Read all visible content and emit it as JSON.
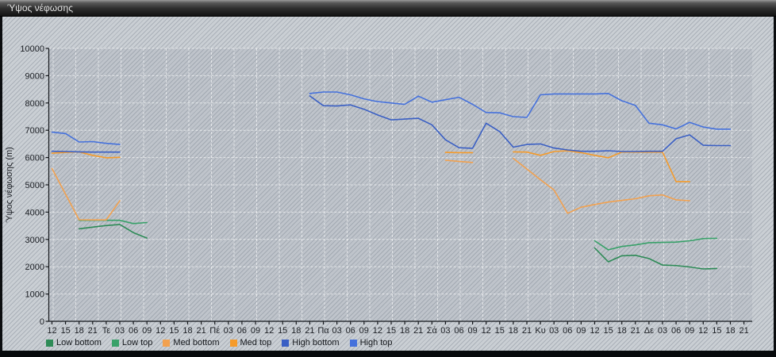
{
  "window": {
    "title": "Ύψος νέφωσης"
  },
  "colors": {
    "titlebar_text": "#e4e4e4",
    "background": "#cacfd4",
    "grid": "#ffffff",
    "axis": "#15181c",
    "low_bottom": "#2E8B57",
    "low_top": "#38A169",
    "med_bottom": "#F2A14F",
    "med_top": "#F59B2B",
    "high_bottom": "#3A5FC4",
    "high_top": "#4571DC"
  },
  "chart_data": {
    "type": "line",
    "title": "Ύψος νέφωσης",
    "xlabel": "",
    "ylabel": "Ύψος νέφωσης (m)",
    "ylim": [
      0,
      10000
    ],
    "ytick_step": 1000,
    "grid": {
      "horizontal": "white dashed every 1000 m",
      "vertical": "white dashed"
    },
    "legend_position": "bottom-left",
    "x_tick_labels": [
      "12",
      "15",
      "18",
      "21",
      "Τε",
      "03",
      "06",
      "09",
      "12",
      "15",
      "18",
      "21",
      "Πέ",
      "03",
      "06",
      "09",
      "12",
      "15",
      "18",
      "21",
      "Πα",
      "03",
      "06",
      "09",
      "12",
      "15",
      "18",
      "21",
      "Σά",
      "03",
      "06",
      "09",
      "12",
      "15",
      "18",
      "21",
      "Κυ",
      "03",
      "06",
      "09",
      "12",
      "15",
      "18",
      "21",
      "Δε",
      "03",
      "06",
      "09",
      "12",
      "15",
      "18",
      "21"
    ],
    "day_label_indices": [
      4,
      12,
      20,
      28,
      36,
      44
    ],
    "units": "m",
    "series": [
      {
        "name": "Low bottom",
        "color": "#2E8B57",
        "segments": [
          [
            [
              2,
              3390
            ],
            [
              3,
              3450
            ],
            [
              4,
              3510
            ],
            [
              5,
              3550
            ],
            [
              6,
              3250
            ],
            [
              7,
              3050
            ]
          ],
          [
            [
              40,
              2690
            ],
            [
              41,
              2180
            ],
            [
              42,
              2400
            ],
            [
              43,
              2420
            ],
            [
              44,
              2300
            ],
            [
              45,
              2060
            ],
            [
              46,
              2040
            ],
            [
              47,
              1990
            ],
            [
              48,
              1920
            ],
            [
              49,
              1935
            ]
          ]
        ]
      },
      {
        "name": "Low top",
        "color": "#38A169",
        "segments": [
          [
            [
              2,
              3700
            ],
            [
              3,
              3700
            ],
            [
              4,
              3700
            ],
            [
              5,
              3700
            ],
            [
              6,
              3580
            ],
            [
              7,
              3620
            ]
          ],
          [
            [
              40,
              2950
            ],
            [
              41,
              2620
            ],
            [
              42,
              2740
            ],
            [
              43,
              2800
            ],
            [
              44,
              2880
            ],
            [
              45,
              2890
            ],
            [
              46,
              2900
            ],
            [
              47,
              2950
            ],
            [
              48,
              3030
            ],
            [
              49,
              3040
            ]
          ]
        ]
      },
      {
        "name": "Med bottom",
        "color": "#F2A14F",
        "segments": [
          [
            [
              0,
              5600
            ],
            [
              1,
              4660
            ],
            [
              2,
              3720
            ],
            [
              3,
              3715
            ],
            [
              4,
              3715
            ],
            [
              5,
              4420
            ]
          ],
          [
            [
              29,
              5900
            ],
            [
              30,
              5860
            ],
            [
              31,
              5820
            ]
          ],
          [
            [
              34,
              5970
            ],
            [
              35,
              5580
            ],
            [
              36,
              5190
            ],
            [
              37,
              4810
            ],
            [
              38,
              3960
            ],
            [
              39,
              4180
            ],
            [
              40,
              4280
            ],
            [
              41,
              4370
            ],
            [
              42,
              4430
            ],
            [
              43,
              4490
            ],
            [
              44,
              4600
            ],
            [
              45,
              4630
            ],
            [
              46,
              4450
            ],
            [
              47,
              4420
            ]
          ]
        ]
      },
      {
        "name": "Med top",
        "color": "#F59B2B",
        "segments": [
          [
            [
              0,
              6160
            ],
            [
              1,
              6190
            ],
            [
              2,
              6205
            ],
            [
              3,
              6080
            ],
            [
              4,
              5990
            ],
            [
              5,
              6010
            ]
          ],
          [
            [
              29,
              6190
            ],
            [
              30,
              6180
            ],
            [
              31,
              6180
            ]
          ],
          [
            [
              34,
              6210
            ],
            [
              35,
              6200
            ],
            [
              36,
              6080
            ],
            [
              37,
              6220
            ],
            [
              38,
              6250
            ],
            [
              39,
              6180
            ],
            [
              40,
              6080
            ],
            [
              41,
              5990
            ],
            [
              42,
              6200
            ],
            [
              43,
              6200
            ],
            [
              44,
              6200
            ],
            [
              45,
              6200
            ],
            [
              46,
              5120
            ],
            [
              47,
              5120
            ]
          ]
        ]
      },
      {
        "name": "High bottom",
        "color": "#3A5FC4",
        "segments": [
          [
            [
              0,
              6230
            ],
            [
              1,
              6220
            ],
            [
              2,
              6210
            ],
            [
              3,
              6200
            ],
            [
              4,
              6200
            ],
            [
              5,
              6200
            ]
          ],
          [
            [
              19,
              8260
            ],
            [
              20,
              7900
            ],
            [
              21,
              7890
            ],
            [
              22,
              7930
            ],
            [
              23,
              7770
            ],
            [
              24,
              7560
            ],
            [
              25,
              7380
            ],
            [
              26,
              7410
            ],
            [
              27,
              7440
            ],
            [
              28,
              7200
            ],
            [
              29,
              6650
            ],
            [
              30,
              6360
            ],
            [
              31,
              6340
            ],
            [
              32,
              7260
            ],
            [
              33,
              6950
            ],
            [
              34,
              6380
            ],
            [
              35,
              6480
            ],
            [
              36,
              6500
            ],
            [
              37,
              6350
            ],
            [
              38,
              6280
            ],
            [
              39,
              6230
            ],
            [
              40,
              6230
            ],
            [
              41,
              6250
            ],
            [
              42,
              6220
            ],
            [
              43,
              6220
            ],
            [
              44,
              6230
            ],
            [
              45,
              6230
            ],
            [
              46,
              6690
            ],
            [
              47,
              6830
            ],
            [
              48,
              6450
            ],
            [
              49,
              6440
            ],
            [
              50,
              6440
            ]
          ]
        ]
      },
      {
        "name": "High top",
        "color": "#4571DC",
        "segments": [
          [
            [
              0,
              6930
            ],
            [
              1,
              6880
            ],
            [
              2,
              6570
            ],
            [
              3,
              6585
            ],
            [
              4,
              6520
            ],
            [
              5,
              6480
            ]
          ],
          [
            [
              19,
              8350
            ],
            [
              20,
              8400
            ],
            [
              21,
              8400
            ],
            [
              22,
              8300
            ],
            [
              23,
              8150
            ],
            [
              24,
              8050
            ],
            [
              25,
              8000
            ],
            [
              26,
              7950
            ],
            [
              27,
              8250
            ],
            [
              28,
              8030
            ],
            [
              29,
              8120
            ],
            [
              30,
              8210
            ],
            [
              31,
              7950
            ],
            [
              32,
              7650
            ],
            [
              33,
              7640
            ],
            [
              34,
              7500
            ],
            [
              35,
              7470
            ],
            [
              36,
              8300
            ],
            [
              37,
              8330
            ],
            [
              38,
              8330
            ],
            [
              39,
              8330
            ],
            [
              40,
              8330
            ],
            [
              41,
              8350
            ],
            [
              42,
              8080
            ],
            [
              43,
              7910
            ],
            [
              44,
              7260
            ],
            [
              45,
              7200
            ],
            [
              46,
              7050
            ],
            [
              47,
              7290
            ],
            [
              48,
              7120
            ],
            [
              49,
              7040
            ],
            [
              50,
              7040
            ]
          ]
        ]
      }
    ]
  }
}
